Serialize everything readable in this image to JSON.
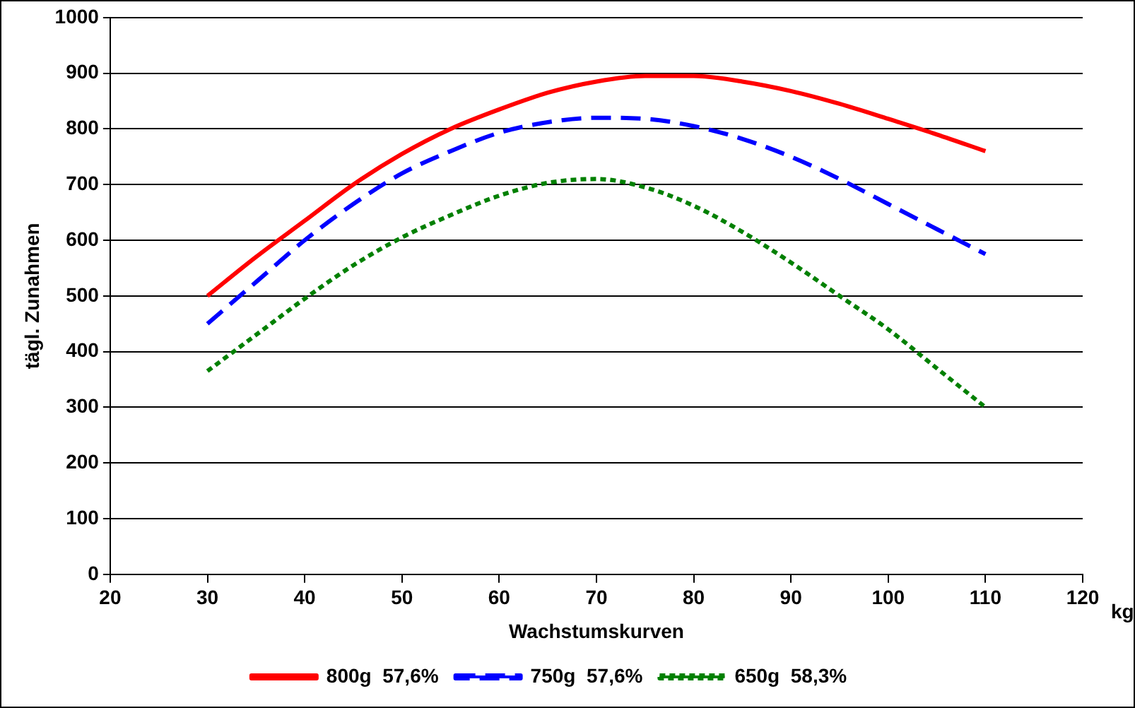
{
  "chart_data": {
    "type": "line",
    "xlabel": "Wachstumskurven",
    "ylabel": "tägl. Zunahmen",
    "annotations": [
      "kg"
    ],
    "x": [
      30,
      35,
      40,
      45,
      50,
      55,
      60,
      65,
      70,
      75,
      80,
      85,
      90,
      95,
      100,
      105,
      110
    ],
    "series": [
      {
        "name": "800g  57,6%",
        "color": "#ff0000",
        "line_style": "solid",
        "values": [
          500,
          570,
          635,
          700,
          755,
          800,
          835,
          865,
          885,
          895,
          895,
          885,
          868,
          845,
          818,
          790,
          760
        ]
      },
      {
        "name": "750g  57,6%",
        "color": "#0000ff",
        "line_style": "dashed",
        "values": [
          450,
          525,
          600,
          665,
          720,
          760,
          793,
          812,
          820,
          818,
          805,
          782,
          750,
          710,
          665,
          620,
          575
        ]
      },
      {
        "name": "650g  58,3%",
        "color": "#008000",
        "line_style": "dotted",
        "values": [
          365,
          430,
          495,
          555,
          605,
          645,
          680,
          703,
          710,
          695,
          662,
          615,
          560,
          500,
          440,
          370,
          300
        ]
      }
    ],
    "xlim": [
      20,
      120
    ],
    "xticks": [
      20,
      30,
      40,
      50,
      60,
      70,
      80,
      90,
      100,
      110,
      120
    ],
    "ylim": [
      0,
      1000
    ],
    "yticks": [
      0,
      100,
      200,
      300,
      400,
      500,
      600,
      700,
      800,
      900,
      1000
    ],
    "grid": "y",
    "legend": "bottom",
    "marker": "none"
  }
}
